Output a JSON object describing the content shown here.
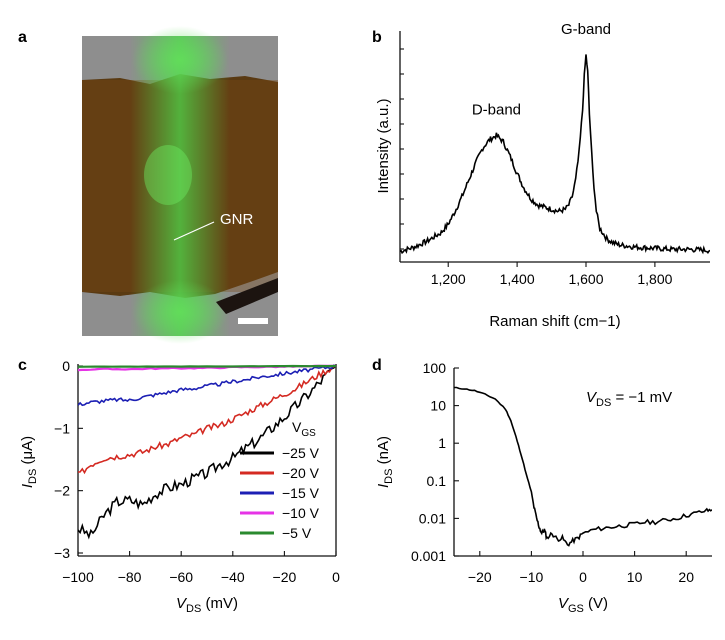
{
  "panels": {
    "a": {
      "label": "a",
      "annotation": "GNR",
      "colors": {
        "substrate": "#8e8e8e",
        "ribbon": "#5a3a12",
        "fluorescence": "#4dd84a",
        "scalebar": "#ffffff"
      }
    },
    "b": {
      "label": "b"
    },
    "c": {
      "label": "c"
    },
    "d": {
      "label": "d"
    }
  },
  "chart_data": [
    {
      "id": "b",
      "type": "line",
      "title": "",
      "xlabel": "Raman shift (cm−1)",
      "ylabel": "Intensity (a.u.)",
      "xlim": [
        1060,
        1960
      ],
      "ylim": [
        0,
        1
      ],
      "xticks": [
        1200,
        1400,
        1600,
        1800
      ],
      "xtick_labels": [
        "1,200",
        "1,400",
        "1,600",
        "1,800"
      ],
      "x": [
        1060,
        1100,
        1140,
        1180,
        1200,
        1220,
        1240,
        1260,
        1280,
        1300,
        1320,
        1340,
        1360,
        1380,
        1400,
        1420,
        1440,
        1460,
        1480,
        1500,
        1520,
        1540,
        1550,
        1560,
        1570,
        1580,
        1590,
        1595,
        1600,
        1605,
        1610,
        1620,
        1630,
        1640,
        1660,
        1680,
        1700,
        1750,
        1800,
        1850,
        1900,
        1960
      ],
      "y": [
        0.05,
        0.07,
        0.1,
        0.14,
        0.18,
        0.24,
        0.31,
        0.39,
        0.47,
        0.54,
        0.58,
        0.6,
        0.57,
        0.5,
        0.42,
        0.35,
        0.3,
        0.27,
        0.26,
        0.25,
        0.24,
        0.25,
        0.27,
        0.31,
        0.39,
        0.52,
        0.72,
        0.88,
        0.98,
        0.9,
        0.7,
        0.42,
        0.24,
        0.16,
        0.11,
        0.09,
        0.08,
        0.07,
        0.065,
        0.06,
        0.06,
        0.055
      ],
      "annotations": [
        {
          "text": "D-band",
          "x": 1340,
          "y": 0.7
        },
        {
          "text": "G-band",
          "x": 1600,
          "y": 1.08
        }
      ],
      "color": "#000000"
    },
    {
      "id": "c",
      "type": "line",
      "title": "",
      "xlabel": "V",
      "xlabel_sub": "DS",
      "xlabel_unit": " (mV)",
      "ylabel": "I",
      "ylabel_sub": "DS",
      "ylabel_unit": " (μA)",
      "xlim": [
        -100,
        0
      ],
      "ylim": [
        -3,
        0
      ],
      "xticks": [
        -100,
        -80,
        -60,
        -40,
        -20,
        0
      ],
      "xtick_labels": [
        "−100",
        "−80",
        "−60",
        "−40",
        "−20",
        "0"
      ],
      "yticks": [
        0,
        -1,
        -2,
        -3
      ],
      "ytick_labels": [
        "0",
        "−1",
        "−2",
        "−3"
      ],
      "legend_title": "V",
      "legend_title_sub": "GS",
      "series": [
        {
          "name": "−25 V",
          "color": "#000000",
          "x": [
            -100,
            -95,
            -90,
            -85,
            -80,
            -75,
            -70,
            -65,
            -60,
            -55,
            -50,
            -45,
            -40,
            -35,
            -30,
            -25,
            -20,
            -15,
            -10,
            -5,
            0
          ],
          "values": [
            -2.6,
            -2.72,
            -2.4,
            -2.18,
            -2.15,
            -2.22,
            -2.05,
            -1.95,
            -1.9,
            -1.8,
            -1.72,
            -1.58,
            -1.48,
            -1.32,
            -1.18,
            -1.0,
            -0.82,
            -0.62,
            -0.42,
            -0.2,
            0
          ]
        },
        {
          "name": "−20 V",
          "color": "#d42a22",
          "x": [
            -100,
            -95,
            -90,
            -85,
            -80,
            -75,
            -70,
            -65,
            -60,
            -55,
            -50,
            -45,
            -40,
            -35,
            -30,
            -25,
            -20,
            -15,
            -10,
            -5,
            0
          ],
          "values": [
            -1.75,
            -1.58,
            -1.48,
            -1.45,
            -1.42,
            -1.38,
            -1.3,
            -1.25,
            -1.15,
            -1.1,
            -1.0,
            -0.95,
            -0.85,
            -0.75,
            -0.65,
            -0.55,
            -0.45,
            -0.35,
            -0.22,
            -0.1,
            0
          ]
        },
        {
          "name": "−15 V",
          "color": "#1c1fb4",
          "x": [
            -100,
            -95,
            -90,
            -85,
            -80,
            -75,
            -70,
            -65,
            -60,
            -55,
            -50,
            -45,
            -40,
            -35,
            -30,
            -25,
            -20,
            -15,
            -10,
            -5,
            0
          ],
          "values": [
            -0.62,
            -0.58,
            -0.56,
            -0.54,
            -0.55,
            -0.5,
            -0.46,
            -0.42,
            -0.38,
            -0.36,
            -0.32,
            -0.29,
            -0.25,
            -0.22,
            -0.18,
            -0.15,
            -0.12,
            -0.09,
            -0.06,
            -0.03,
            0
          ]
        },
        {
          "name": "−10 V",
          "color": "#e633e6",
          "x": [
            -100,
            -90,
            -80,
            -70,
            -60,
            -50,
            -40,
            -30,
            -20,
            -10,
            0
          ],
          "values": [
            -0.06,
            -0.05,
            -0.05,
            -0.04,
            -0.035,
            -0.03,
            -0.02,
            -0.015,
            -0.01,
            -0.005,
            0
          ]
        },
        {
          "name": "−5 V",
          "color": "#2a8a2e",
          "x": [
            -100,
            -80,
            -60,
            -40,
            -20,
            0
          ],
          "values": [
            -0.012,
            -0.01,
            -0.008,
            -0.006,
            -0.003,
            0
          ]
        }
      ]
    },
    {
      "id": "d",
      "type": "line",
      "title": "",
      "scale_y": "log",
      "xlabel": "V",
      "xlabel_sub": "GS",
      "xlabel_unit": " (V)",
      "ylabel": "I",
      "ylabel_sub": "DS",
      "ylabel_unit": " (nA)",
      "xlim": [
        -25,
        25
      ],
      "ylim": [
        0.001,
        100
      ],
      "xticks": [
        -20,
        -10,
        0,
        10,
        20
      ],
      "xtick_labels": [
        "−20",
        "−10",
        "0",
        "10",
        "20"
      ],
      "yticks": [
        100,
        10,
        1,
        0.1,
        0.01,
        0.001
      ],
      "ytick_labels": [
        "100",
        "10",
        "1",
        "0.1",
        "0.01",
        "0.001"
      ],
      "annotation": {
        "v": "V",
        "sub": "DS",
        "rest": " = −1 mV"
      },
      "series": [
        {
          "name": "I_DS",
          "color": "#000000",
          "x": [
            -25,
            -23,
            -21,
            -19,
            -17,
            -15,
            -14,
            -13,
            -12,
            -11,
            -10,
            -9.5,
            -9,
            -8.5,
            -8,
            -7.5,
            -7,
            -6,
            -5,
            -4,
            -3,
            -2,
            -1,
            0,
            2,
            4,
            6,
            8,
            10,
            12,
            14,
            16,
            18,
            20,
            22,
            24,
            25
          ],
          "values": [
            30,
            28,
            25,
            20,
            15,
            8,
            4,
            1.5,
            0.5,
            0.15,
            0.05,
            0.02,
            0.01,
            0.006,
            0.004,
            0.005,
            0.003,
            0.004,
            0.0028,
            0.003,
            0.002,
            0.0025,
            0.003,
            0.004,
            0.005,
            0.0055,
            0.006,
            0.0065,
            0.007,
            0.008,
            0.008,
            0.009,
            0.01,
            0.012,
            0.014,
            0.016,
            0.017
          ]
        }
      ]
    }
  ]
}
